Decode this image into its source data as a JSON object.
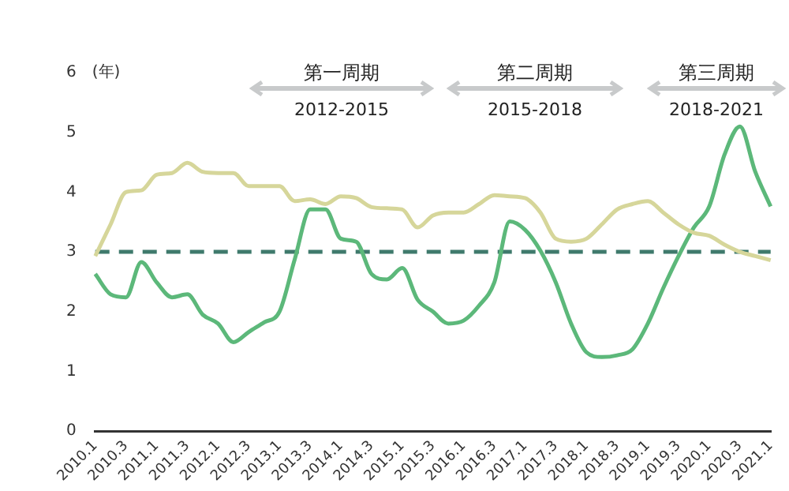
{
  "chart_data": {
    "type": "line",
    "ylabel": "(年)",
    "categories": [
      "2010.1",
      null,
      "2010.3",
      null,
      "2011.1",
      null,
      "2011.3",
      null,
      "2012.1",
      null,
      "2012.3",
      null,
      "2013.1",
      null,
      "2013.3",
      null,
      "2014.1",
      null,
      "2014.3",
      null,
      "2015.1",
      null,
      "2015.3",
      null,
      "2016.1",
      null,
      "2016.3",
      null,
      "2017.1",
      null,
      "2017.3",
      null,
      "2018.1",
      null,
      "2018.3",
      null,
      "2019.1",
      null,
      "2019.3",
      null,
      "2020.1",
      null,
      "2020.3",
      null,
      "2021.1"
    ],
    "series": [
      {
        "color": "#d6d69a",
        "values": [
          2.93,
          3.46,
          4.0,
          4.03,
          4.29,
          4.32,
          4.49,
          4.34,
          4.32,
          4.32,
          4.1,
          4.1,
          4.1,
          3.85,
          3.88,
          3.8,
          3.93,
          3.9,
          3.75,
          3.73,
          3.71,
          3.41,
          3.61,
          3.66,
          3.66,
          3.8,
          3.95,
          3.93,
          3.9,
          3.66,
          3.22,
          3.17,
          3.22,
          3.46,
          3.71,
          3.8,
          3.85,
          3.66,
          3.46,
          3.32,
          3.27,
          3.12,
          3.0,
          2.93,
          2.86
        ]
      },
      {
        "color": "#5cb87a",
        "values": [
          2.63,
          2.29,
          2.24,
          2.83,
          2.49,
          2.24,
          2.29,
          1.95,
          1.8,
          1.49,
          1.66,
          1.82,
          2.0,
          2.88,
          3.71,
          3.71,
          3.22,
          3.17,
          2.63,
          2.54,
          2.73,
          2.2,
          2.0,
          1.8,
          1.85,
          2.1,
          2.49,
          3.51,
          3.37,
          3.02,
          2.49,
          1.8,
          1.32,
          1.24,
          1.27,
          1.37,
          1.8,
          2.39,
          2.93,
          3.41,
          3.76,
          4.63,
          5.1,
          4.34,
          3.76
        ]
      }
    ],
    "ylim": [
      0,
      6
    ],
    "yticks": [
      0,
      1,
      2,
      3,
      4,
      5,
      6
    ],
    "grid": false,
    "legend": false,
    "marker": "none",
    "line_style": "solid",
    "ref_lines": [
      {
        "axis": "y",
        "value": 3,
        "color": "#3f7a6c",
        "line_style": "dashed"
      }
    ],
    "annotations": [
      "第一周期",
      "2012-2015",
      "第二周期",
      "2015-2018",
      "第三周期",
      "2018-2021"
    ]
  }
}
